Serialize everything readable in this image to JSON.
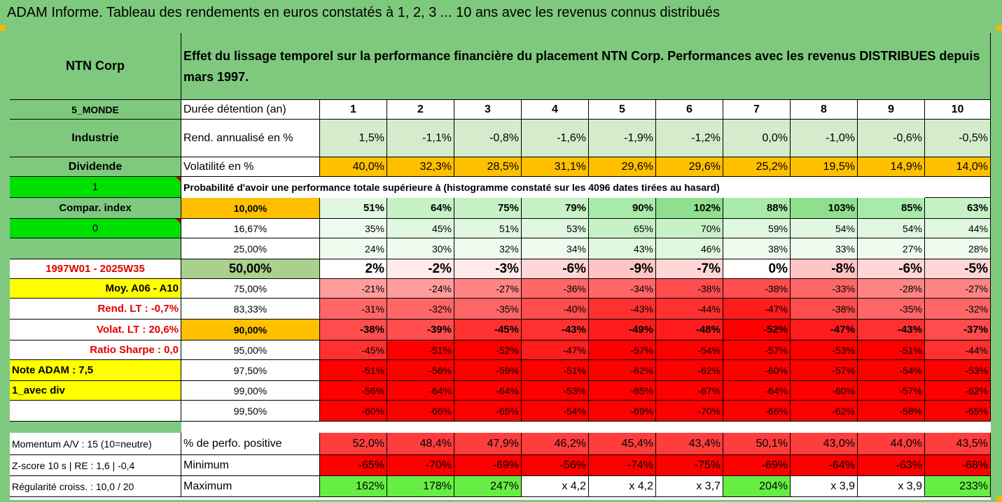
{
  "title": "ADAM Informe. Tableau des rendements en euros constatés à 1, 2, 3 ... 10 ans avec les revenus connus distribués",
  "header": {
    "company": "NTN Corp",
    "description": "Effet du lissage temporel sur la performance financière du placement NTN Corp. Performances avec les revenus DISTRIBUES depuis mars 1997."
  },
  "left": {
    "zone": "5_MONDE",
    "sector": "Industrie",
    "dividend": "Dividende",
    "sel1": "1",
    "compar": "Compar. index",
    "sel0": "0",
    "period": "1997W01 - 2025W35",
    "moy": "Moy. A06 - A10",
    "rend_lt": "Rend. LT :   -0,7%",
    "volat_lt": "Volat. LT :   20,6%",
    "sharpe": "Ratio Sharpe :   0,0",
    "note": "Note ADAM : 7,5",
    "avec_div": "1_avec div",
    "momentum": "Momentum A/V : 15 (10=neutre)",
    "zscore": "Z-score 10 s  | RE : 1,6 | -0,4",
    "regularite": "Régularité croiss. : 10,0 / 20"
  },
  "labels": {
    "duree": "Durée détention (an)",
    "rend": "Rend. annualisé en %",
    "volat": "Volatilité en %",
    "proba": "Probabilité d'avoir une performance totale supérieure à (histogramme constaté sur les 4096 dates tirées au hasard)",
    "perf_pos": "% de perfo. positive",
    "minimum": "Minimum",
    "maximum": "Maximum"
  },
  "years": [
    "1",
    "2",
    "3",
    "4",
    "5",
    "6",
    "7",
    "8",
    "9",
    "10"
  ],
  "rend": [
    "1,5%",
    "-1,1%",
    "-0,8%",
    "-1,6%",
    "-1,9%",
    "-1,2%",
    "0,0%",
    "-1,0%",
    "-0,6%",
    "-0,5%"
  ],
  "volat": [
    "40,0%",
    "32,3%",
    "28,5%",
    "31,1%",
    "29,6%",
    "29,6%",
    "25,2%",
    "19,5%",
    "14,9%",
    "14,0%"
  ],
  "prob_rows": [
    {
      "p": "10,00%",
      "v": [
        "51%",
        "64%",
        "75%",
        "79%",
        "90%",
        "102%",
        "88%",
        "103%",
        "85%",
        "63%"
      ]
    },
    {
      "p": "16,67%",
      "v": [
        "35%",
        "45%",
        "51%",
        "53%",
        "65%",
        "70%",
        "59%",
        "54%",
        "54%",
        "44%"
      ]
    },
    {
      "p": "25,00%",
      "v": [
        "24%",
        "30%",
        "32%",
        "34%",
        "43%",
        "46%",
        "38%",
        "33%",
        "27%",
        "28%"
      ]
    },
    {
      "p": "50,00%",
      "v": [
        "2%",
        "-2%",
        "-3%",
        "-6%",
        "-9%",
        "-7%",
        "0%",
        "-8%",
        "-6%",
        "-5%"
      ]
    },
    {
      "p": "75,00%",
      "v": [
        "-21%",
        "-24%",
        "-27%",
        "-36%",
        "-34%",
        "-38%",
        "-38%",
        "-33%",
        "-28%",
        "-27%"
      ]
    },
    {
      "p": "83,33%",
      "v": [
        "-31%",
        "-32%",
        "-35%",
        "-40%",
        "-43%",
        "-44%",
        "-47%",
        "-38%",
        "-35%",
        "-32%"
      ]
    },
    {
      "p": "90,00%",
      "v": [
        "-38%",
        "-39%",
        "-45%",
        "-43%",
        "-49%",
        "-48%",
        "-52%",
        "-47%",
        "-43%",
        "-37%"
      ]
    },
    {
      "p": "95,00%",
      "v": [
        "-45%",
        "-51%",
        "-52%",
        "-47%",
        "-57%",
        "-54%",
        "-57%",
        "-53%",
        "-51%",
        "-44%"
      ]
    },
    {
      "p": "97,50%",
      "v": [
        "-51%",
        "-56%",
        "-59%",
        "-51%",
        "-62%",
        "-62%",
        "-60%",
        "-57%",
        "-54%",
        "-53%"
      ]
    },
    {
      "p": "99,00%",
      "v": [
        "-56%",
        "-64%",
        "-64%",
        "-53%",
        "-65%",
        "-67%",
        "-64%",
        "-60%",
        "-57%",
        "-62%"
      ]
    },
    {
      "p": "99,50%",
      "v": [
        "-60%",
        "-66%",
        "-65%",
        "-54%",
        "-69%",
        "-70%",
        "-66%",
        "-62%",
        "-58%",
        "-65%"
      ]
    }
  ],
  "perf_pos": [
    "52,0%",
    "48,4%",
    "47,9%",
    "46,2%",
    "45,4%",
    "43,4%",
    "50,1%",
    "43,0%",
    "44,0%",
    "43,5%"
  ],
  "minimum": [
    "-65%",
    "-70%",
    "-69%",
    "-56%",
    "-74%",
    "-75%",
    "-69%",
    "-64%",
    "-63%",
    "-68%"
  ],
  "maximum": [
    "162%",
    "178%",
    "247%",
    "x 4,2",
    "x 4,2",
    "x 3,7",
    "204%",
    "x 3,9",
    "x 3,9",
    "233%"
  ],
  "colors": {
    "green_hdr": "#7fc97f",
    "bright_green": "#00e000",
    "orange": "#ffc000",
    "yellow": "#ffff00",
    "red": "#ff0000",
    "dark_red_text": "#e00000",
    "olive": "#a9d18e"
  }
}
